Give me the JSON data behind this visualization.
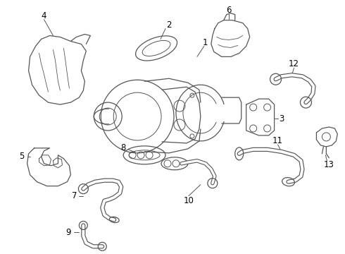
{
  "bg_color": "#ffffff",
  "line_color": "#555555",
  "text_color": "#000000",
  "figsize": [
    4.9,
    3.6
  ],
  "dpi": 100,
  "lw": 0.9
}
